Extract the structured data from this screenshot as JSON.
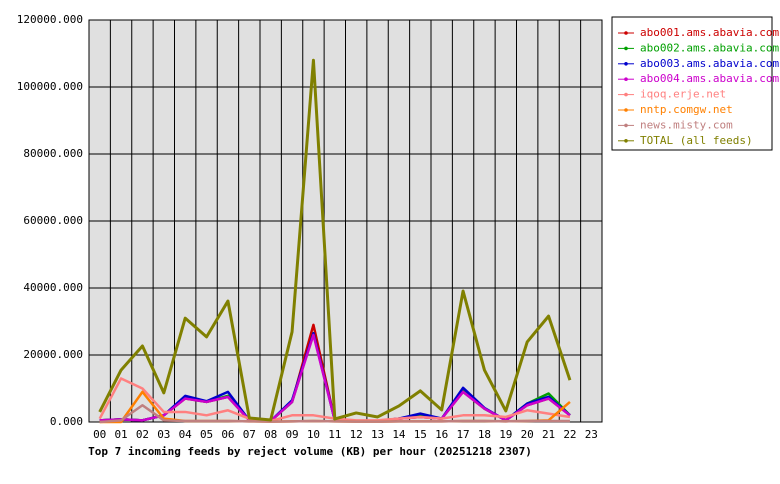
{
  "chart_data": {
    "type": "line",
    "title": "Top 7 incoming feeds by reject volume (KB) per hour (20251218 2307)",
    "categories": [
      "00",
      "01",
      "02",
      "03",
      "04",
      "05",
      "06",
      "07",
      "08",
      "09",
      "10",
      "11",
      "12",
      "13",
      "14",
      "15",
      "16",
      "17",
      "18",
      "19",
      "20",
      "21",
      "22",
      "23"
    ],
    "ylim": [
      0,
      120000
    ],
    "yticks": [
      {
        "value": 0,
        "label": "0.000"
      },
      {
        "value": 20000,
        "label": "20000.000"
      },
      {
        "value": 40000,
        "label": "40000.000"
      },
      {
        "value": 60000,
        "label": "60000.000"
      },
      {
        "value": 80000,
        "label": "80000.000"
      },
      {
        "value": 100000,
        "label": "100000.000"
      },
      {
        "value": 120000,
        "label": "120000.000"
      }
    ],
    "grid": true,
    "legend": "right",
    "series": [
      {
        "name": "abo001.ams.abavia.com",
        "color": "#cc0000",
        "values": [
          500,
          800,
          500,
          2000,
          7000,
          6000,
          7500,
          500,
          300,
          6000,
          29000,
          500,
          300,
          300,
          1000,
          1500,
          1000,
          9000,
          4000,
          500,
          5000,
          7000,
          2000,
          null
        ]
      },
      {
        "name": "abo002.ams.abavia.com",
        "color": "#00a000",
        "values": [
          500,
          800,
          500,
          2000,
          7200,
          6000,
          7800,
          500,
          300,
          6000,
          26500,
          500,
          300,
          300,
          1000,
          1800,
          1000,
          9300,
          4000,
          500,
          5500,
          8500,
          2000,
          null
        ]
      },
      {
        "name": "abo003.ams.abavia.com",
        "color": "#0000cc",
        "values": [
          500,
          800,
          500,
          2000,
          7800,
          6200,
          9000,
          500,
          300,
          6500,
          26500,
          500,
          300,
          300,
          1000,
          2500,
          1000,
          10200,
          4200,
          500,
          5500,
          7500,
          2000,
          null
        ]
      },
      {
        "name": "abo004.ams.abavia.com",
        "color": "#cc00cc",
        "values": [
          500,
          800,
          500,
          2000,
          7000,
          6000,
          7500,
          500,
          300,
          6000,
          26000,
          500,
          300,
          300,
          1000,
          1500,
          1000,
          9000,
          4000,
          500,
          5000,
          7000,
          2000,
          null
        ]
      },
      {
        "name": "iqoq.erje.net",
        "color": "#ff8080",
        "values": [
          1000,
          13000,
          10000,
          3000,
          3000,
          2000,
          3500,
          1000,
          300,
          2000,
          2000,
          1000,
          500,
          500,
          1000,
          1500,
          1000,
          2000,
          2000,
          1500,
          3500,
          2500,
          1500,
          null
        ]
      },
      {
        "name": "nntp.comgw.net",
        "color": "#ff8000",
        "values": [
          0,
          0,
          9000,
          1000,
          300,
          300,
          300,
          200,
          100,
          200,
          300,
          200,
          100,
          100,
          200,
          200,
          200,
          300,
          300,
          200,
          300,
          500,
          6000,
          null
        ]
      },
      {
        "name": "news.misty.com",
        "color": "#c08080",
        "values": [
          0,
          500,
          5000,
          500,
          300,
          300,
          300,
          200,
          100,
          200,
          300,
          200,
          100,
          100,
          200,
          200,
          200,
          300,
          300,
          200,
          300,
          300,
          300,
          null
        ]
      },
      {
        "name": "TOTAL (all feeds)",
        "color": "#808000",
        "values": [
          3000,
          15500,
          22700,
          8700,
          31000,
          25400,
          36100,
          1200,
          600,
          26900,
          108000,
          900,
          2700,
          1500,
          4800,
          9300,
          3600,
          39100,
          15500,
          3300,
          23900,
          31600,
          12500,
          null
        ]
      }
    ]
  }
}
